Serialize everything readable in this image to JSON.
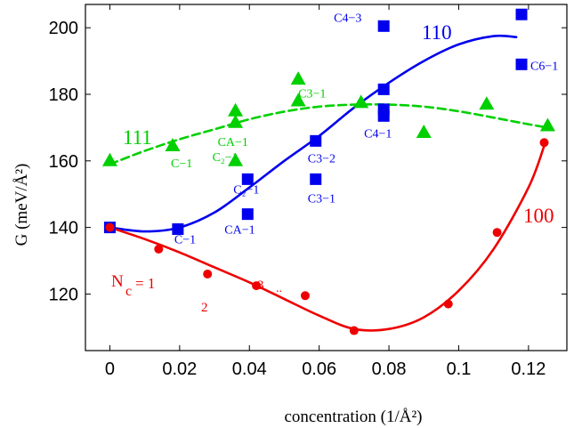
{
  "chart_data": {
    "type": "scatter",
    "xlabel": "concentration (1/Å²)",
    "ylabel": "G (meV/Å²)",
    "xlim": [
      -0.007,
      0.131
    ],
    "ylim": [
      103,
      207
    ],
    "x_ticks": [
      "0",
      "0.02",
      "0.04",
      "0.06",
      "0.08",
      "0.1",
      "0.12"
    ],
    "y_ticks": [
      "120",
      "140",
      "160",
      "180",
      "200"
    ],
    "grid": false,
    "legend": "none",
    "series": [
      {
        "name": "110",
        "color": "#0000ee",
        "marker": "square",
        "points": [
          {
            "x": 0.0,
            "y": 140,
            "label": ""
          },
          {
            "x": 0.0195,
            "y": 139.5,
            "label": "C−1"
          },
          {
            "x": 0.0395,
            "y": 154.5,
            "label": "C₂−1"
          },
          {
            "x": 0.0395,
            "y": 144,
            "label": "CA−1"
          },
          {
            "x": 0.059,
            "y": 166,
            "label": "C3−2"
          },
          {
            "x": 0.059,
            "y": 154.5,
            "label": "C3−1"
          },
          {
            "x": 0.0785,
            "y": 200.5,
            "label": "C4−3"
          },
          {
            "x": 0.0785,
            "y": 181.5,
            "label": ""
          },
          {
            "x": 0.0785,
            "y": 175.5,
            "label": ""
          },
          {
            "x": 0.0785,
            "y": 173.5,
            "label": "C4−1"
          },
          {
            "x": 0.118,
            "y": 204,
            "label": ""
          },
          {
            "x": 0.118,
            "y": 189,
            "label": "C6−1"
          }
        ],
        "fit": [
          [
            0.0,
            140
          ],
          [
            0.01,
            138.8
          ],
          [
            0.02,
            140
          ],
          [
            0.03,
            144.5
          ],
          [
            0.04,
            152
          ],
          [
            0.05,
            160
          ],
          [
            0.06,
            167.5
          ],
          [
            0.07,
            176
          ],
          [
            0.08,
            183.5
          ],
          [
            0.09,
            190
          ],
          [
            0.1,
            195
          ],
          [
            0.11,
            197.5
          ],
          [
            0.1165,
            197.2
          ]
        ]
      },
      {
        "name": "111",
        "color": "#00d000",
        "marker": "triangle",
        "points": [
          {
            "x": 0.0,
            "y": 160,
            "label": ""
          },
          {
            "x": 0.018,
            "y": 164.5,
            "label": "C−1"
          },
          {
            "x": 0.036,
            "y": 175,
            "label": ""
          },
          {
            "x": 0.036,
            "y": 171.5,
            "label": "CA−1"
          },
          {
            "x": 0.036,
            "y": 160,
            "label": "C₂−1"
          },
          {
            "x": 0.054,
            "y": 184.5,
            "label": ""
          },
          {
            "x": 0.054,
            "y": 178,
            "label": "C3−1"
          },
          {
            "x": 0.072,
            "y": 177.5,
            "label": ""
          },
          {
            "x": 0.09,
            "y": 168.5,
            "label": ""
          },
          {
            "x": 0.108,
            "y": 177,
            "label": ""
          },
          {
            "x": 0.1255,
            "y": 170.5,
            "label": ""
          }
        ],
        "fit": [
          [
            0.0,
            159
          ],
          [
            0.01,
            163
          ],
          [
            0.02,
            166.5
          ],
          [
            0.03,
            169.5
          ],
          [
            0.04,
            172.5
          ],
          [
            0.05,
            174.8
          ],
          [
            0.06,
            176.3
          ],
          [
            0.07,
            176.9
          ],
          [
            0.08,
            176.9
          ],
          [
            0.09,
            176.3
          ],
          [
            0.1,
            174.9
          ],
          [
            0.11,
            173
          ],
          [
            0.12,
            171
          ],
          [
            0.1255,
            170
          ]
        ]
      },
      {
        "name": "100",
        "color": "#ee0000",
        "marker": "circle",
        "points": [
          {
            "x": 0.0,
            "y": 140,
            "label": ""
          },
          {
            "x": 0.014,
            "y": 133.5,
            "label": ""
          },
          {
            "x": 0.028,
            "y": 126,
            "label": ""
          },
          {
            "x": 0.042,
            "y": 122.5,
            "label": ""
          },
          {
            "x": 0.056,
            "y": 119.5,
            "label": ""
          },
          {
            "x": 0.07,
            "y": 109,
            "label": ""
          },
          {
            "x": 0.097,
            "y": 117,
            "label": ""
          },
          {
            "x": 0.111,
            "y": 138.5,
            "label": ""
          },
          {
            "x": 0.1245,
            "y": 165.5,
            "label": ""
          }
        ],
        "fit": [
          [
            0.0,
            140
          ],
          [
            0.01,
            136.5
          ],
          [
            0.02,
            132.5
          ],
          [
            0.03,
            128
          ],
          [
            0.04,
            123.5
          ],
          [
            0.05,
            118.5
          ],
          [
            0.06,
            113.5
          ],
          [
            0.07,
            109.5
          ],
          [
            0.08,
            109.5
          ],
          [
            0.09,
            113
          ],
          [
            0.1,
            121
          ],
          [
            0.11,
            133.5
          ],
          [
            0.12,
            152
          ],
          [
            0.1245,
            164.5
          ]
        ]
      }
    ],
    "annotations": {
      "n_c_label": {
        "main": "N",
        "sub": "c",
        "eq": "= 1"
      },
      "counts": [
        "2",
        "3",
        ".."
      ]
    }
  }
}
